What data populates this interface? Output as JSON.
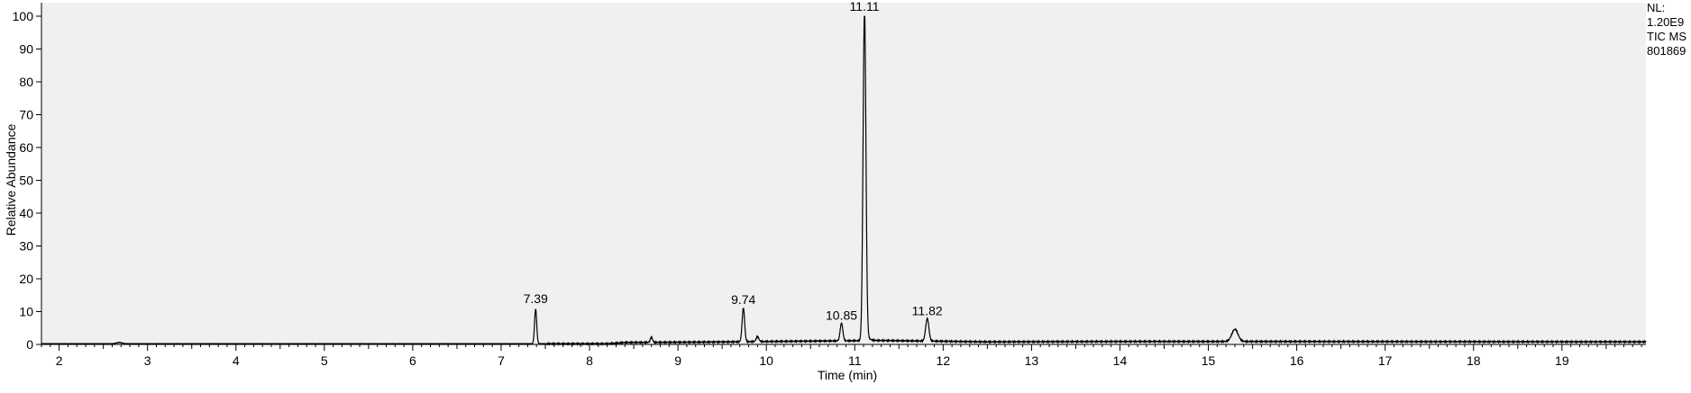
{
  "chart_data": {
    "type": "line",
    "xlabel": "Time (min)",
    "ylabel": "Relative Abundance",
    "xlim": [
      1.8,
      19.95
    ],
    "ylim": [
      0,
      100
    ],
    "x_ticks": [
      2,
      3,
      4,
      5,
      6,
      7,
      8,
      9,
      10,
      11,
      12,
      13,
      14,
      15,
      16,
      17,
      18,
      19
    ],
    "y_ticks": [
      0,
      10,
      20,
      30,
      40,
      50,
      60,
      70,
      80,
      90,
      100
    ],
    "info_lines": [
      "NL:",
      "1.20E9",
      "TIC  MS",
      "801869"
    ],
    "baseline": 0.2,
    "peaks": [
      {
        "x": 2.68,
        "height": 0.4,
        "width": 0.03,
        "tail": 0,
        "label": ""
      },
      {
        "x": 7.39,
        "height": 10.5,
        "width": 0.012,
        "tail": 0.01,
        "label": "7.39"
      },
      {
        "x": 8.7,
        "height": 1.6,
        "width": 0.012,
        "tail": 0,
        "label": ""
      },
      {
        "x": 9.74,
        "height": 10.2,
        "width": 0.014,
        "tail": 0.01,
        "label": "9.74"
      },
      {
        "x": 9.9,
        "height": 1.5,
        "width": 0.015,
        "tail": 0,
        "label": ""
      },
      {
        "x": 10.85,
        "height": 5.4,
        "width": 0.015,
        "tail": 0.01,
        "label": "10.85"
      },
      {
        "x": 11.11,
        "height": 100,
        "width": 0.016,
        "tail": 0.025,
        "label": "11.11"
      },
      {
        "x": 11.82,
        "height": 6.8,
        "width": 0.018,
        "tail": 0.02,
        "label": "11.82"
      },
      {
        "x": 15.3,
        "height": 3.7,
        "width": 0.035,
        "tail": 0.02,
        "label": ""
      }
    ],
    "hump": [
      {
        "x": 8.2,
        "y": 0.2
      },
      {
        "x": 8.4,
        "y": 0.6
      },
      {
        "x": 9.2,
        "y": 0.7
      },
      {
        "x": 11.3,
        "y": 1.2
      },
      {
        "x": 12.5,
        "y": 0.8
      },
      {
        "x": 14.0,
        "y": 0.9
      },
      {
        "x": 15.8,
        "y": 0.9
      },
      {
        "x": 19.95,
        "y": 0.8
      }
    ]
  }
}
